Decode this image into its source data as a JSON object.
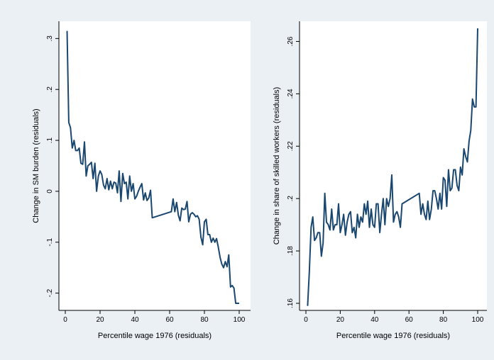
{
  "colors": {
    "background": "#eaf0f4",
    "plot_area": "#ffffff",
    "line": "#1a476f"
  },
  "chart_data": [
    {
      "type": "line",
      "title": "",
      "xlabel": "Percentile wage 1976 (residuals)",
      "ylabel": "Change in SM burden (residuals)",
      "xlim": [
        0,
        100
      ],
      "ylim": [
        -0.22,
        0.32
      ],
      "xticks": [
        0,
        20,
        40,
        60,
        80,
        100
      ],
      "xtick_labels": [
        "0",
        "20",
        "40",
        "60",
        "80",
        "100"
      ],
      "yticks": [
        -0.2,
        -0.1,
        0,
        0.1,
        0.2,
        0.3
      ],
      "ytick_labels": [
        "-.2",
        "-.1",
        "0",
        ".1",
        ".2",
        ".3"
      ],
      "grid": false,
      "legend": "none",
      "series": [
        {
          "x": [
            1,
            2,
            3,
            4,
            5,
            6,
            7,
            8,
            9,
            10,
            11,
            12,
            13,
            14,
            15,
            16,
            17,
            18,
            19,
            20,
            21,
            22,
            23,
            24,
            25,
            26,
            27,
            28,
            29,
            30,
            31,
            32,
            33,
            34,
            35,
            36,
            37,
            38,
            39,
            40,
            41,
            42,
            43,
            44,
            45,
            46,
            47,
            48,
            49,
            50,
            61,
            62,
            63,
            64,
            65,
            66,
            67,
            68,
            69,
            70,
            71,
            72,
            73,
            74,
            75,
            76,
            77,
            78,
            79,
            80,
            81,
            82,
            83,
            84,
            85,
            86,
            87,
            88,
            89,
            90,
            91,
            92,
            93,
            94,
            95,
            96,
            97,
            98,
            99,
            100
          ],
          "y": [
            0.315,
            0.135,
            0.125,
            0.085,
            0.1,
            0.08,
            0.08,
            0.085,
            0.055,
            0.053,
            0.097,
            0.03,
            0.05,
            0.053,
            0.057,
            0.025,
            0.055,
            0.0,
            0.03,
            0.04,
            0.033,
            0.012,
            0.005,
            0.025,
            0.003,
            0.02,
            0.005,
            0.018,
            0.016,
            -0.003,
            0.04,
            -0.02,
            0.035,
            0.015,
            0.018,
            -0.015,
            0.03,
            0.0,
            0.015,
            -0.015,
            -0.01,
            0.0,
            0.008,
            0.015,
            -0.017,
            -0.003,
            -0.018,
            -0.013,
            0.002,
            -0.052,
            -0.04,
            -0.015,
            -0.04,
            -0.022,
            -0.047,
            -0.058,
            -0.033,
            -0.036,
            -0.035,
            -0.02,
            -0.06,
            -0.045,
            -0.042,
            -0.045,
            -0.05,
            -0.048,
            -0.055,
            -0.09,
            -0.105,
            -0.06,
            -0.055,
            -0.085,
            -0.085,
            -0.1,
            -0.092,
            -0.1,
            -0.093,
            -0.11,
            -0.13,
            -0.143,
            -0.15,
            -0.138,
            -0.148,
            -0.125,
            -0.188,
            -0.185,
            -0.19,
            -0.22,
            -0.22,
            -0.22
          ]
        }
      ]
    },
    {
      "type": "line",
      "title": "",
      "xlabel": "Percentile wage 1976 (residuals)",
      "ylabel": "Change in share of skilled workers (residuals)",
      "xlim": [
        0,
        100
      ],
      "ylim": [
        0.16,
        0.265
      ],
      "xticks": [
        0,
        20,
        40,
        60,
        80,
        100
      ],
      "xtick_labels": [
        "0",
        "20",
        "40",
        "60",
        "80",
        "100"
      ],
      "yticks": [
        0.16,
        0.18,
        0.2,
        0.22,
        0.24,
        0.26
      ],
      "ytick_labels": [
        ".16",
        ".18",
        ".2",
        ".22",
        ".24",
        ".26"
      ],
      "grid": false,
      "legend": "none",
      "series": [
        {
          "x": [
            1,
            2,
            3,
            4,
            5,
            6,
            7,
            8,
            9,
            10,
            11,
            12,
            13,
            14,
            15,
            16,
            17,
            18,
            19,
            20,
            21,
            22,
            23,
            24,
            25,
            26,
            27,
            28,
            29,
            30,
            31,
            32,
            33,
            34,
            35,
            36,
            37,
            38,
            39,
            40,
            41,
            42,
            43,
            44,
            45,
            46,
            47,
            48,
            49,
            50,
            51,
            52,
            53,
            54,
            55,
            56,
            66,
            67,
            68,
            69,
            70,
            71,
            72,
            73,
            74,
            75,
            76,
            77,
            78,
            79,
            80,
            81,
            82,
            83,
            84,
            85,
            86,
            87,
            88,
            89,
            90,
            91,
            92,
            93,
            94,
            95,
            96,
            97,
            98,
            99,
            100
          ],
          "y": [
            0.159,
            0.172,
            0.189,
            0.193,
            0.184,
            0.185,
            0.187,
            0.187,
            0.178,
            0.183,
            0.202,
            0.191,
            0.19,
            0.188,
            0.196,
            0.188,
            0.19,
            0.19,
            0.198,
            0.187,
            0.19,
            0.194,
            0.186,
            0.191,
            0.194,
            0.195,
            0.187,
            0.189,
            0.185,
            0.194,
            0.189,
            0.193,
            0.191,
            0.198,
            0.194,
            0.199,
            0.189,
            0.196,
            0.19,
            0.189,
            0.198,
            0.198,
            0.187,
            0.194,
            0.2,
            0.19,
            0.2,
            0.197,
            0.2,
            0.209,
            0.191,
            0.194,
            0.195,
            0.193,
            0.189,
            0.198,
            0.202,
            0.194,
            0.198,
            0.194,
            0.192,
            0.199,
            0.192,
            0.196,
            0.203,
            0.203,
            0.2,
            0.196,
            0.202,
            0.196,
            0.208,
            0.207,
            0.197,
            0.211,
            0.203,
            0.204,
            0.211,
            0.211,
            0.205,
            0.203,
            0.212,
            0.209,
            0.219,
            0.216,
            0.214,
            0.222,
            0.226,
            0.238,
            0.235,
            0.235,
            0.265
          ]
        }
      ]
    }
  ]
}
